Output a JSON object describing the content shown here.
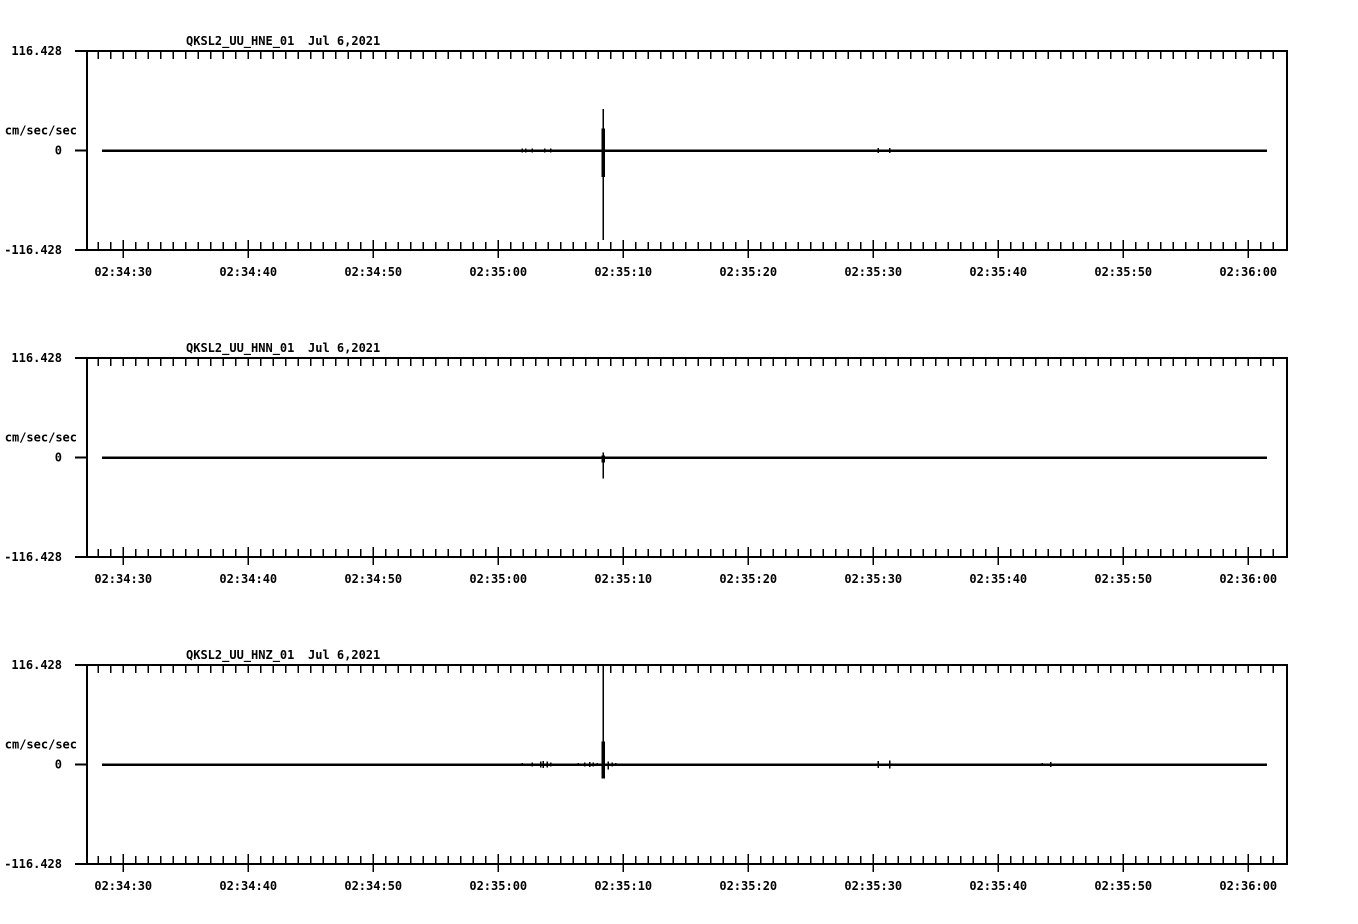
{
  "page": {
    "background": "#ffffff",
    "foreground": "#000000"
  },
  "chart_data": [
    {
      "type": "line",
      "kind": "seismogram",
      "station_channel": "QKSL2_UU_HNE_01",
      "date": "Jul 6,2021",
      "ylabel": "cm/sec/sec",
      "units": "cm/sec/sec",
      "ylim": [
        -116.428,
        116.428
      ],
      "yticks": {
        "top": "116.428",
        "zero": "0",
        "bottom": "-116.428"
      },
      "baseline": 0,
      "x_ticklabels": [
        "02:34:30",
        "02:34:40",
        "02:34:50",
        "02:35:00",
        "02:35:10",
        "02:35:20",
        "02:35:30",
        "02:35:40",
        "02:35:50",
        "02:36:00"
      ],
      "x_first_label_s": 30,
      "x_label_step_s": 10,
      "x_minor_step_s": 1,
      "x_axis_range_s": [
        27.1,
        123.1
      ],
      "trace_range_s": [
        28.3,
        121.5
      ],
      "events": [
        {
          "t": 61.9,
          "up": 2.3,
          "down": 2.3
        },
        {
          "t": 62.2,
          "up": 2.3,
          "down": 2.3
        },
        {
          "t": 62.7,
          "up": 2.3,
          "down": 2.3
        },
        {
          "t": 63.7,
          "up": 2.3,
          "down": 2.3
        },
        {
          "t": 64.2,
          "up": 2.3,
          "down": 2.3
        },
        {
          "t": 68.4,
          "up": 48.6,
          "down": 104.7,
          "thick_up": 25.7,
          "thick_down": 31.0
        },
        {
          "t": 90.4,
          "up": 2.9,
          "down": 2.9
        },
        {
          "t": 91.3,
          "up": 2.9,
          "down": 2.9
        }
      ]
    },
    {
      "type": "line",
      "kind": "seismogram",
      "station_channel": "QKSL2_UU_HNN_01",
      "date": "Jul 6,2021",
      "ylabel": "cm/sec/sec",
      "units": "cm/sec/sec",
      "ylim": [
        -116.428,
        116.428
      ],
      "yticks": {
        "top": "116.428",
        "zero": "0",
        "bottom": "-116.428"
      },
      "baseline": 0,
      "x_ticklabels": [
        "02:34:30",
        "02:34:40",
        "02:34:50",
        "02:35:00",
        "02:35:10",
        "02:35:20",
        "02:35:30",
        "02:35:40",
        "02:35:50",
        "02:36:00"
      ],
      "x_first_label_s": 30,
      "x_label_step_s": 10,
      "x_minor_step_s": 1,
      "x_axis_range_s": [
        27.1,
        123.1
      ],
      "trace_range_s": [
        28.3,
        121.5
      ],
      "events": [
        {
          "t": 63.6,
          "up": 1.2,
          "down": 1.2
        },
        {
          "t": 68.4,
          "up": 5.9,
          "down": 24.6,
          "thick_up": 2.3,
          "thick_down": 5.9
        },
        {
          "t": 91.3,
          "up": 1.2,
          "down": 1.2
        }
      ]
    },
    {
      "type": "line",
      "kind": "seismogram",
      "station_channel": "QKSL2_UU_HNZ_01",
      "date": "Jul 6,2021",
      "ylabel": "cm/sec/sec",
      "units": "cm/sec/sec",
      "ylim": [
        -116.428,
        116.428
      ],
      "yticks": {
        "top": "116.428",
        "zero": "0",
        "bottom": "-116.428"
      },
      "baseline": 0,
      "x_ticklabels": [
        "02:34:30",
        "02:34:40",
        "02:34:50",
        "02:35:00",
        "02:35:10",
        "02:35:20",
        "02:35:30",
        "02:35:40",
        "02:35:50",
        "02:36:00"
      ],
      "x_first_label_s": 30,
      "x_label_step_s": 10,
      "x_minor_step_s": 1,
      "x_axis_range_s": [
        27.1,
        123.1
      ],
      "trace_range_s": [
        28.3,
        121.5
      ],
      "events": [
        {
          "t": 61.9,
          "up": 1.8,
          "down": 1.8
        },
        {
          "t": 62.7,
          "up": 2.3,
          "down": 2.3
        },
        {
          "t": 63.4,
          "up": 3.5,
          "down": 3.5
        },
        {
          "t": 63.6,
          "up": 4.1,
          "down": 4.1
        },
        {
          "t": 63.9,
          "up": 3.5,
          "down": 3.5
        },
        {
          "t": 64.2,
          "up": 2.3,
          "down": 2.3
        },
        {
          "t": 66.4,
          "up": 1.8,
          "down": 1.8
        },
        {
          "t": 66.9,
          "up": 2.3,
          "down": 2.3
        },
        {
          "t": 67.3,
          "up": 2.9,
          "down": 2.9
        },
        {
          "t": 67.6,
          "up": 2.3,
          "down": 2.3
        },
        {
          "t": 67.9,
          "up": 1.8,
          "down": 1.8
        },
        {
          "t": 68.4,
          "up": 116.428,
          "down": 16.4,
          "thick_up": 26.9,
          "thick_down": 16.4
        },
        {
          "t": 68.8,
          "up": 3.5,
          "down": 5.9
        },
        {
          "t": 69.1,
          "up": 2.3,
          "down": 2.3
        },
        {
          "t": 69.4,
          "up": 1.8,
          "down": 1.8
        },
        {
          "t": 90.4,
          "up": 4.1,
          "down": 4.1
        },
        {
          "t": 91.3,
          "up": 4.7,
          "down": 4.7
        },
        {
          "t": 103.5,
          "up": 1.8,
          "down": 1.8
        },
        {
          "t": 104.2,
          "up": 2.9,
          "down": 2.9
        }
      ]
    }
  ]
}
